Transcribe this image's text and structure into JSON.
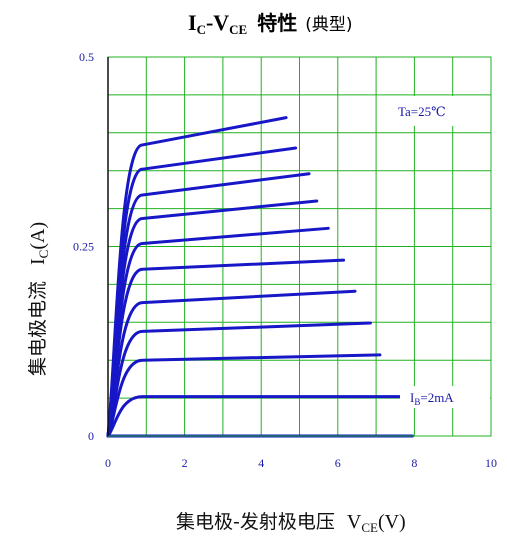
{
  "chart_data": {
    "type": "line",
    "title": {
      "main": "I",
      "sub1": "C",
      "dash": "-V",
      "sub2": "CE",
      "cjk": "特性",
      "paren": "(典型)"
    },
    "ylabel": {
      "cjk": "集电极电流",
      "var": "I",
      "var_sub": "C",
      "unit": "(A)"
    },
    "xlabel": {
      "cjk": "集电极-发射极电压",
      "var": "V",
      "var_sub": "CE",
      "unit": "(V)"
    },
    "x_ticks": [
      "0",
      "2",
      "4",
      "6",
      "8",
      "10"
    ],
    "y_ticks": [
      "0",
      "0.25",
      "0.5"
    ],
    "xlim": [
      0,
      10
    ],
    "ylim": [
      0,
      0.5
    ],
    "grid": true,
    "annotations": {
      "temperature": "Ta=25℃",
      "ib_prefix": "I",
      "ib_sub": "B",
      "ib_value": "=2mA"
    },
    "colors": {
      "grid": "#22b022",
      "curve": "#1717c8",
      "text": "#1a1aa8"
    },
    "series": [
      {
        "ib": 0,
        "knee_v": 0.9,
        "i_sat": 0.0,
        "v_end": 7.95,
        "i_end": 0.0
      },
      {
        "ib": 1,
        "knee_v": 0.9,
        "i_sat": 0.052,
        "v_end": 7.6,
        "i_end": 0.052
      },
      {
        "ib": 2,
        "knee_v": 0.9,
        "i_sat": 0.1,
        "v_end": 7.1,
        "i_end": 0.107
      },
      {
        "ib": 3,
        "knee_v": 0.9,
        "i_sat": 0.138,
        "v_end": 6.85,
        "i_end": 0.149
      },
      {
        "ib": 4,
        "knee_v": 0.9,
        "i_sat": 0.176,
        "v_end": 6.45,
        "i_end": 0.191
      },
      {
        "ib": 5,
        "knee_v": 0.9,
        "i_sat": 0.22,
        "v_end": 6.15,
        "i_end": 0.232
      },
      {
        "ib": 6,
        "knee_v": 0.9,
        "i_sat": 0.254,
        "v_end": 5.75,
        "i_end": 0.274
      },
      {
        "ib": 7,
        "knee_v": 0.9,
        "i_sat": 0.287,
        "v_end": 5.45,
        "i_end": 0.31
      },
      {
        "ib": 8,
        "knee_v": 0.9,
        "i_sat": 0.318,
        "v_end": 5.25,
        "i_end": 0.346
      },
      {
        "ib": 9,
        "knee_v": 0.9,
        "i_sat": 0.352,
        "v_end": 4.9,
        "i_end": 0.38
      },
      {
        "ib": 10,
        "knee_v": 0.9,
        "i_sat": 0.384,
        "v_end": 4.65,
        "i_end": 0.42
      }
    ]
  }
}
